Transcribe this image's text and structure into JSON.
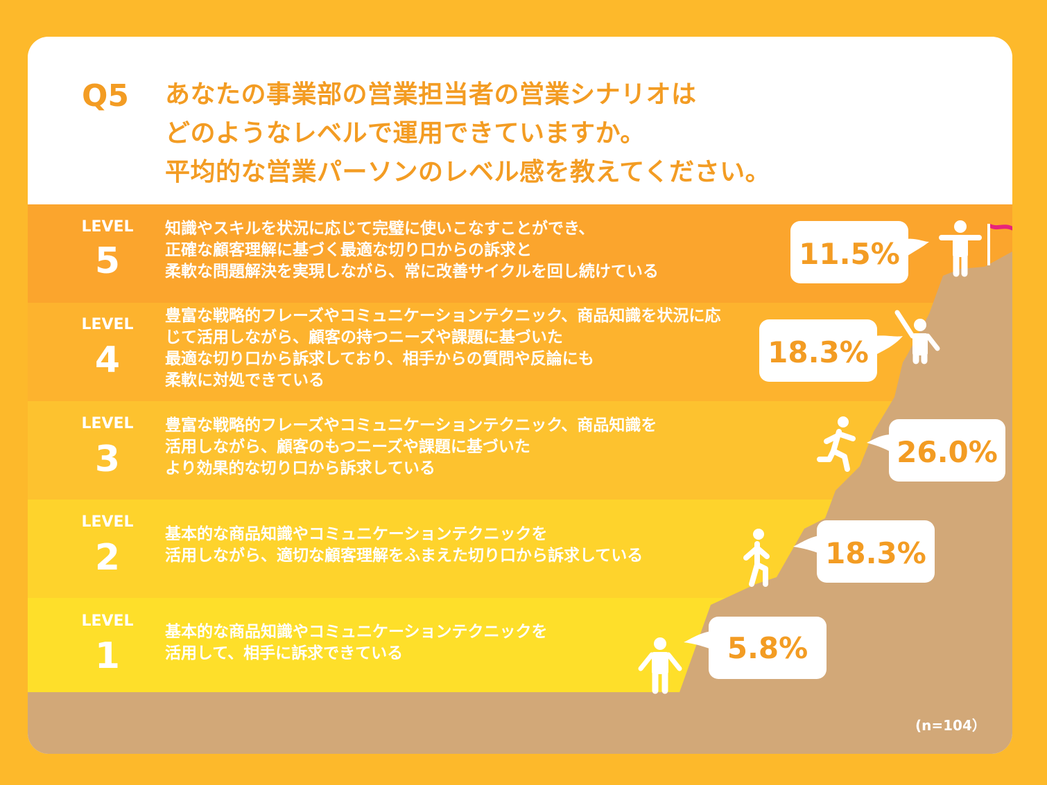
{
  "question": {
    "label": "Q5",
    "lines": [
      "あなたの事業部の営業担当者の営業シナリオは",
      "どのようなレベルで運用できていますか。",
      "平均的な営業パーソンのレベル感を教えてください。"
    ]
  },
  "levels": [
    {
      "word": "LEVEL",
      "number": "5",
      "desc": [
        "知識やスキルを状況に応じて完璧に使いこなすことができ、",
        "正確な顧客理解に基づく最適な切り口からの訴求と",
        "柔軟な問題解決を実現しながら、常に改善サイクルを回し続けている"
      ],
      "percent_label": "11.5%"
    },
    {
      "word": "LEVEL",
      "number": "4",
      "desc": [
        "豊富な戦略的フレーズやコミュニケーションテクニック、商品知識を状況に応",
        "じて活用しながら、顧客の持つニーズや課題に基づいた",
        "最適な切り口から訴求しており、相手からの質問や反論にも",
        "柔軟に対処できている"
      ],
      "percent_label": "18.3%"
    },
    {
      "word": "LEVEL",
      "number": "3",
      "desc": [
        "豊富な戦略的フレーズやコミュニケーションテクニック、商品知識を",
        "活用しながら、顧客のもつニーズや課題に基づいた",
        "より効果的な切り口から訴求している"
      ],
      "percent_label": "26.0%"
    },
    {
      "word": "LEVEL",
      "number": "2",
      "desc": [
        "基本的な商品知識やコミュニケーションテクニックを",
        "活用しながら、適切な顧客理解をふまえた切り口から訴求している"
      ],
      "percent_label": "18.3%"
    },
    {
      "word": "LEVEL",
      "number": "1",
      "desc": [
        "基本的な商品知識やコミュニケーションテクニックを",
        "活用して、相手に訴求できている"
      ],
      "percent_label": "5.8%"
    }
  ],
  "note": "(n=104）",
  "colors": {
    "background": "#FDB92B",
    "accent": "#F39C23",
    "level5": "#FBA52D",
    "level4": "#FDB32E",
    "level3": "#FDC22F",
    "level2": "#FED32C",
    "level1": "#FEDF2A",
    "mountain": "#D2A878",
    "flag": "#E8237A"
  },
  "chart_data": {
    "type": "bar",
    "categories": [
      "LEVEL 5",
      "LEVEL 4",
      "LEVEL 3",
      "LEVEL 2",
      "LEVEL 1"
    ],
    "values": [
      11.5,
      18.3,
      26.0,
      18.3,
      5.8
    ],
    "title": "",
    "xlabel": "",
    "ylabel": ""
  }
}
